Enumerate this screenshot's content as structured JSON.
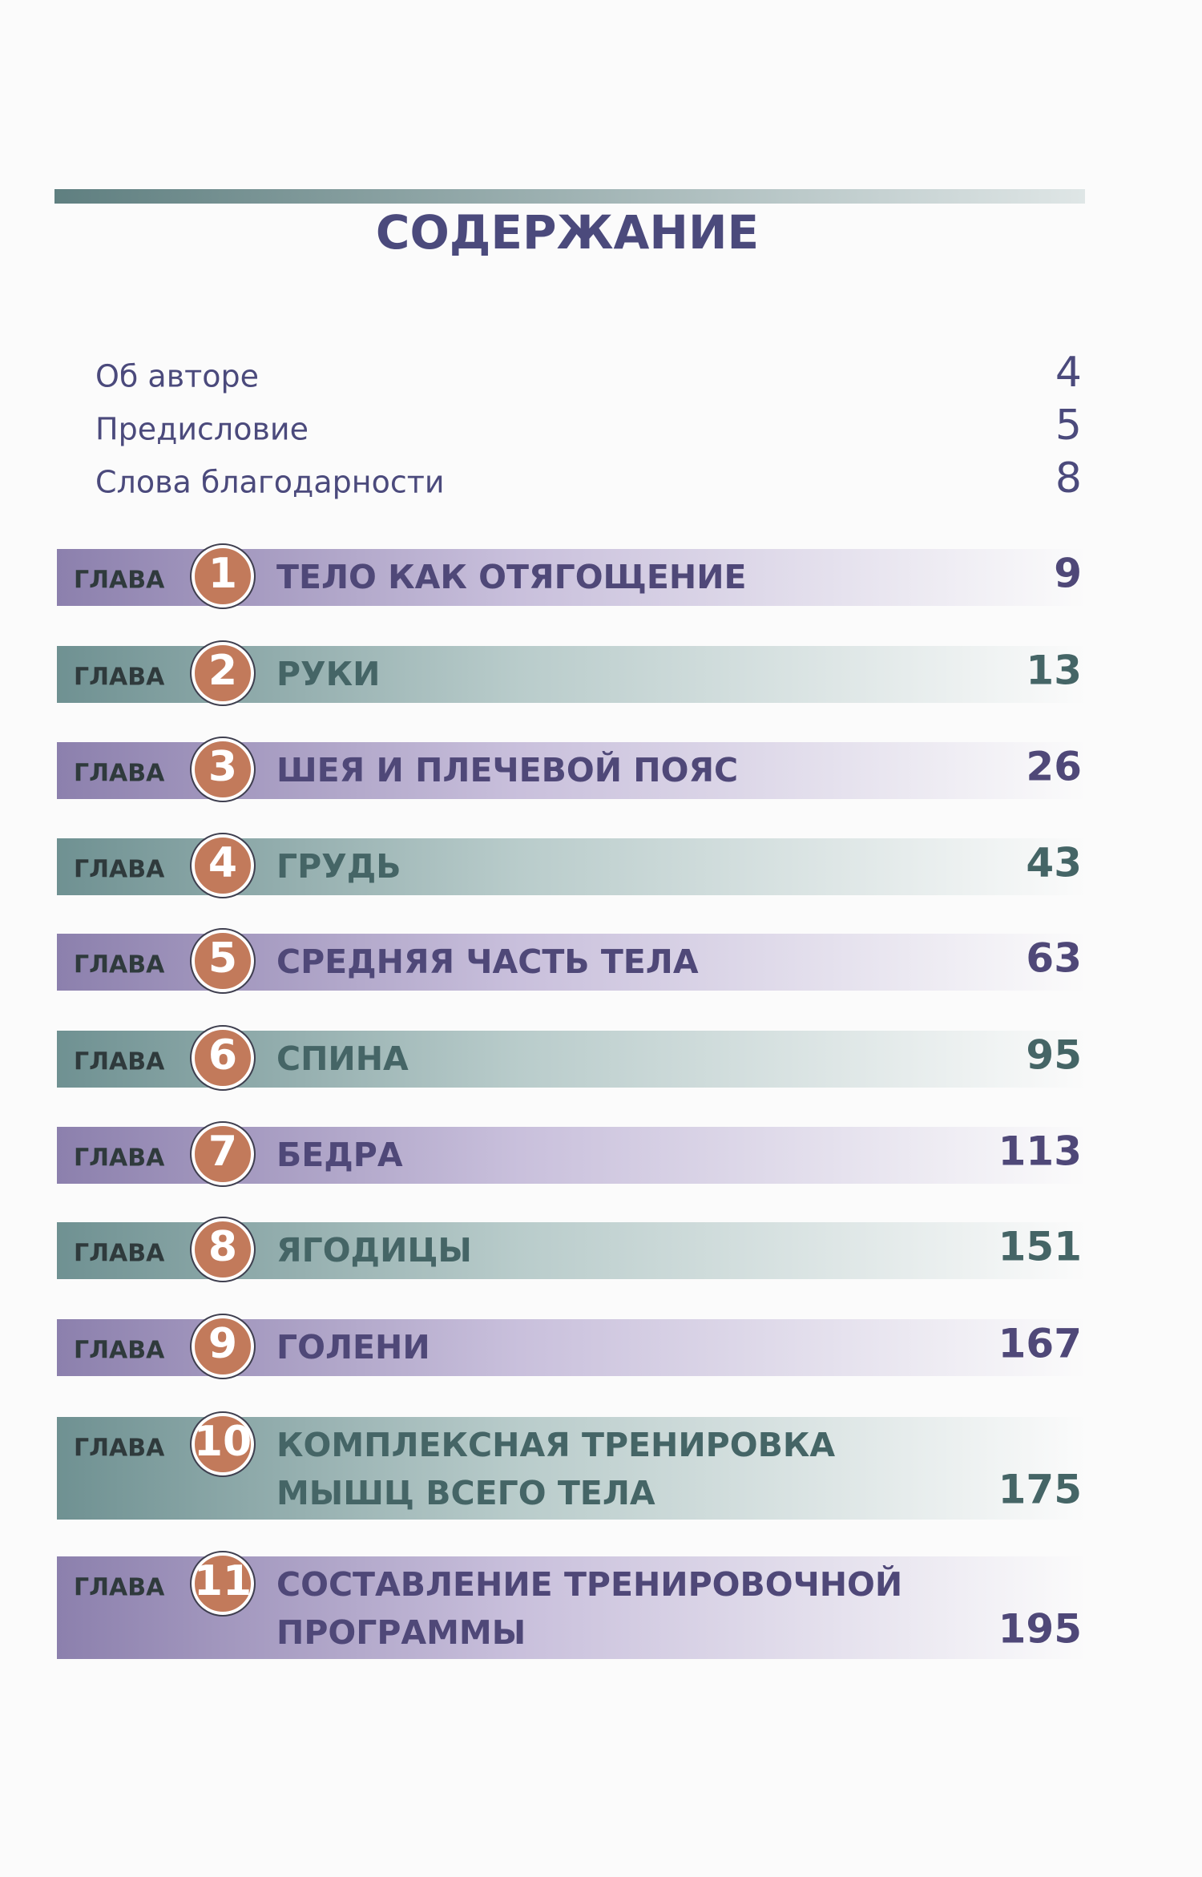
{
  "title": "СОДЕРЖАНИЕ",
  "front_matter": [
    {
      "text": "Об авторе",
      "page": 4
    },
    {
      "text": "Предисловие",
      "page": 5
    },
    {
      "text": "Слова благодарности",
      "page": 8
    }
  ],
  "chapter_label": "ГЛАВА",
  "chapters": [
    {
      "number": 1,
      "title": [
        "ТЕЛО КАК ОТЯГОЩЕНИЕ"
      ],
      "page": 9
    },
    {
      "number": 2,
      "title": [
        "РУКИ"
      ],
      "page": 13
    },
    {
      "number": 3,
      "title": [
        "ШЕЯ И ПЛЕЧЕВОЙ ПОЯС"
      ],
      "page": 26
    },
    {
      "number": 4,
      "title": [
        "ГРУДЬ"
      ],
      "page": 43
    },
    {
      "number": 5,
      "title": [
        "СРЕДНЯЯ ЧАСТЬ ТЕЛА"
      ],
      "page": 63
    },
    {
      "number": 6,
      "title": [
        "СПИНА"
      ],
      "page": 95
    },
    {
      "number": 7,
      "title": [
        "БЕДРА"
      ],
      "page": 113
    },
    {
      "number": 8,
      "title": [
        "ЯГОДИЦЫ"
      ],
      "page": 151
    },
    {
      "number": 9,
      "title": [
        "ГОЛЕНИ"
      ],
      "page": 167
    },
    {
      "number": 10,
      "title": [
        "КОМПЛЕКСНАЯ ТРЕНИРОВКА",
        "МЫШЦ ВСЕГО ТЕЛА"
      ],
      "page": 175
    },
    {
      "number": 11,
      "title": [
        "СОСТАВЛЕНИЕ ТРЕНИРОВОЧНОЙ",
        "ПРОГРАММЫ"
      ],
      "page": 195
    }
  ]
}
